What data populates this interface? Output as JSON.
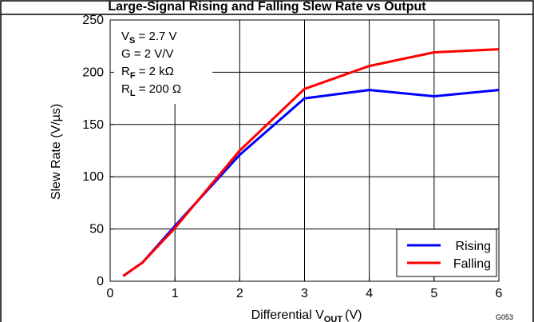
{
  "chart_data": {
    "type": "line",
    "title": "Large-Signal Rising and Falling Slew Rate vs Output",
    "xlabel": "Differential V",
    "xlabel_sub": "OUT",
    "xlabel_unit": "(V)",
    "ylabel": "Slew Rate (V/µs)",
    "xlim": [
      0,
      6
    ],
    "ylim": [
      0,
      250
    ],
    "x_ticks": [
      0,
      1,
      2,
      3,
      4,
      5,
      6
    ],
    "y_ticks": [
      0,
      50,
      100,
      150,
      200,
      250
    ],
    "x_tick_labels": [
      "0",
      "1",
      "2",
      "3",
      "4",
      "5",
      "6"
    ],
    "y_tick_labels": [
      "0",
      "50",
      "100",
      "150",
      "200",
      "250"
    ],
    "grid": true,
    "legend_position": "bottom-right",
    "series": [
      {
        "name": "Rising",
        "color": "#0000ff",
        "x": [
          0.2,
          0.5,
          1,
          2,
          3,
          4,
          5,
          6
        ],
        "y": [
          5,
          18,
          53,
          121,
          175,
          183,
          177,
          183
        ]
      },
      {
        "name": "Falling",
        "color": "#ff0000",
        "x": [
          0.2,
          0.5,
          1,
          2,
          3,
          4,
          5,
          6
        ],
        "y": [
          5,
          18,
          51,
          125,
          184,
          206,
          219,
          222
        ]
      }
    ],
    "annotations": [
      {
        "main": "V",
        "sub": "S",
        "rest": " = 2.7 V"
      },
      {
        "main": "G = 2 V/V",
        "sub": "",
        "rest": ""
      },
      {
        "main": "R",
        "sub": "F",
        "rest": " = 2 kΩ"
      },
      {
        "main": "R",
        "sub": "L",
        "rest": " = 200 Ω"
      }
    ],
    "figure_code": "G053"
  }
}
